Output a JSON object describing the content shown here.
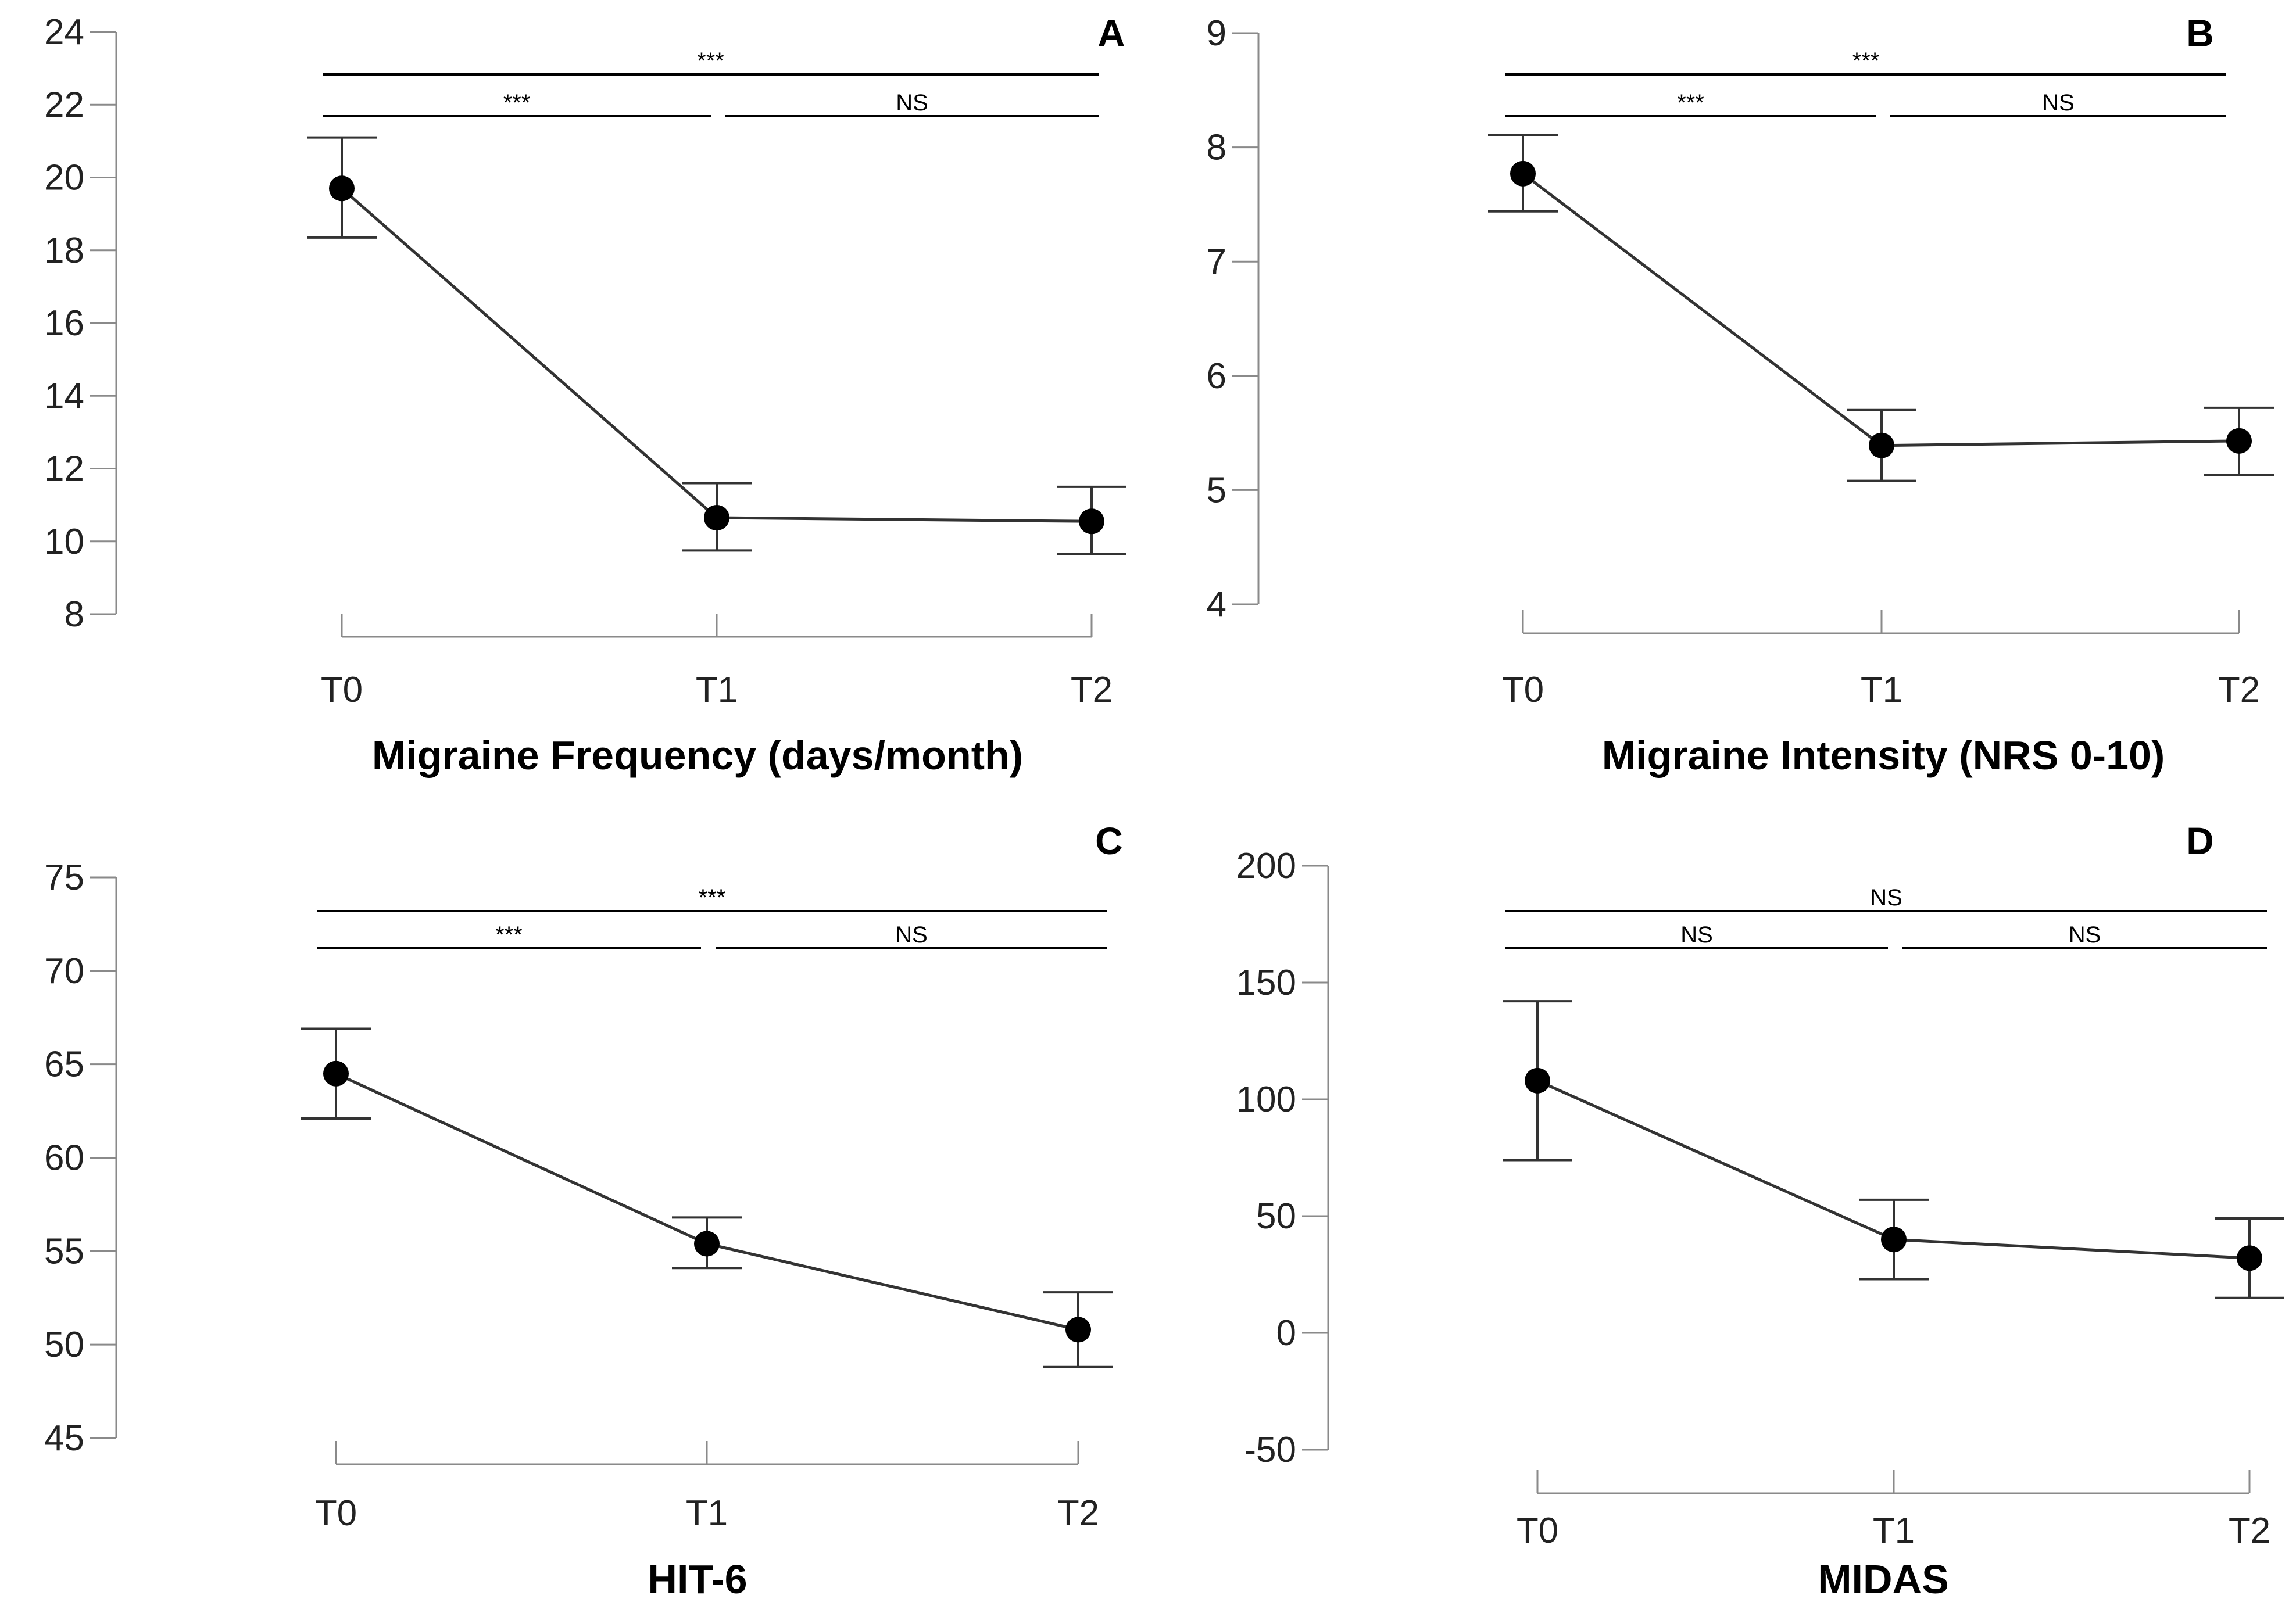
{
  "chart_data": [
    {
      "id": "A",
      "type": "line",
      "panel_label": "A",
      "title": "Migraine Frequency (days/month)",
      "categories": [
        "T0",
        "T1",
        "T2"
      ],
      "values": [
        19.7,
        10.65,
        10.55
      ],
      "error_low": [
        18.35,
        9.75,
        9.65
      ],
      "error_high": [
        21.1,
        11.6,
        11.5
      ],
      "ylim": [
        8,
        24
      ],
      "yticks": [
        8,
        10,
        12,
        14,
        16,
        18,
        20,
        22,
        24
      ],
      "significance": [
        {
          "from": 0,
          "to": 2,
          "label": "***"
        },
        {
          "from": 0,
          "to": 1,
          "label": "***"
        },
        {
          "from": 1,
          "to": 2,
          "label": "NS"
        }
      ]
    },
    {
      "id": "B",
      "type": "line",
      "panel_label": "B",
      "title": "Migraine Intensity (NRS 0-10)",
      "categories": [
        "T0",
        "T1",
        "T2"
      ],
      "values": [
        7.77,
        5.39,
        5.43
      ],
      "error_low": [
        7.44,
        5.08,
        5.13
      ],
      "error_high": [
        8.11,
        5.7,
        5.72
      ],
      "ylim": [
        4,
        9
      ],
      "yticks": [
        4,
        5,
        6,
        7,
        8,
        9
      ],
      "significance": [
        {
          "from": 0,
          "to": 2,
          "label": "***"
        },
        {
          "from": 0,
          "to": 1,
          "label": "***"
        },
        {
          "from": 1,
          "to": 2,
          "label": "NS"
        }
      ]
    },
    {
      "id": "C",
      "type": "line",
      "panel_label": "C",
      "title": "HIT-6",
      "categories": [
        "T0",
        "T1",
        "T2"
      ],
      "values": [
        64.5,
        55.4,
        50.8
      ],
      "error_low": [
        62.1,
        54.1,
        48.8
      ],
      "error_high": [
        66.9,
        56.8,
        52.8
      ],
      "ylim": [
        45,
        75
      ],
      "yticks": [
        45,
        50,
        55,
        60,
        65,
        70,
        75
      ],
      "significance": [
        {
          "from": 0,
          "to": 2,
          "label": "***"
        },
        {
          "from": 0,
          "to": 1,
          "label": "***"
        },
        {
          "from": 1,
          "to": 2,
          "label": "NS"
        }
      ]
    },
    {
      "id": "D",
      "type": "line",
      "panel_label": "D",
      "title": "MIDAS",
      "categories": [
        "T0",
        "T1",
        "T2"
      ],
      "values": [
        108,
        40,
        32
      ],
      "error_low": [
        74,
        23,
        15
      ],
      "error_high": [
        142,
        57,
        49
      ],
      "ylim": [
        -50,
        200
      ],
      "yticks": [
        -50,
        0,
        50,
        100,
        150,
        200
      ],
      "significance": [
        {
          "from": 0,
          "to": 2,
          "label": "NS"
        },
        {
          "from": 0,
          "to": 1,
          "label": "NS"
        },
        {
          "from": 1,
          "to": 2,
          "label": "NS"
        }
      ]
    }
  ]
}
